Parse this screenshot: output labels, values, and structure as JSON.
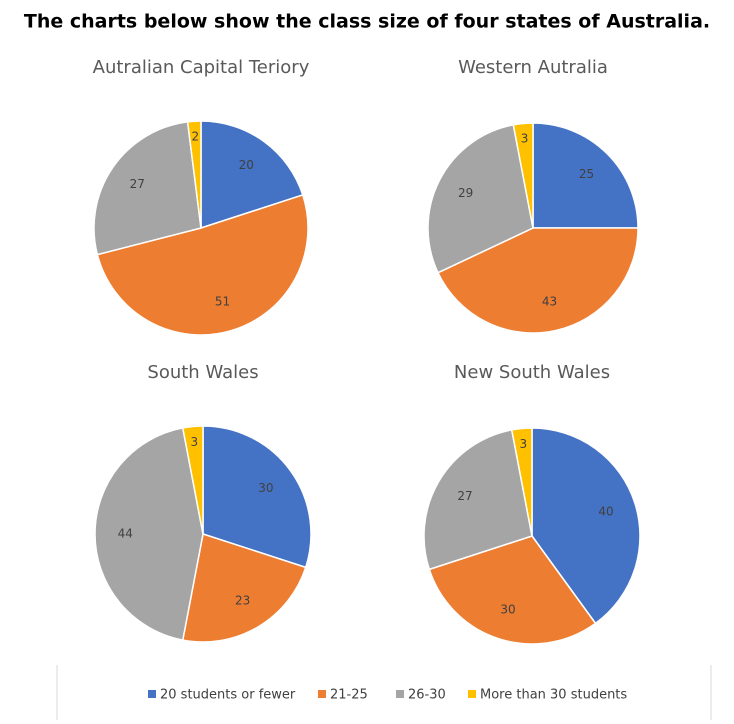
{
  "title": "The charts below show the class size of four states of Australia.",
  "legend": [
    "20 students or fewer",
    "21-25",
    "26-30",
    "More than 30 students"
  ],
  "colors": [
    "#4472c4",
    "#ed7d31",
    "#a5a5a5",
    "#ffc000"
  ],
  "chart_data": [
    {
      "type": "pie",
      "title": "Autralian Capital Teriory",
      "values": [
        20,
        51,
        27,
        2
      ]
    },
    {
      "type": "pie",
      "title": "Western Autralia",
      "values": [
        25,
        43,
        29,
        3
      ]
    },
    {
      "type": "pie",
      "title": "South Wales",
      "values": [
        30,
        23,
        44,
        3
      ]
    },
    {
      "type": "pie",
      "title": "New South Wales",
      "values": [
        40,
        30,
        27,
        3
      ]
    }
  ]
}
